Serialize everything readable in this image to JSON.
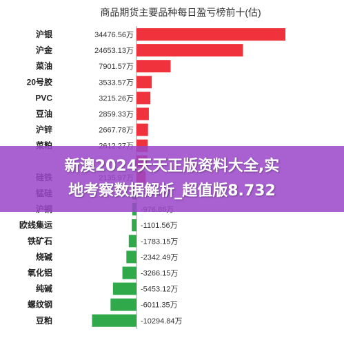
{
  "chart_data": {
    "type": "bar",
    "orientation": "horizontal",
    "title": "商品期货主要品种每日盈亏榜前十(估)",
    "unit": "万",
    "categories": [
      "沪银",
      "沪金",
      "菜油",
      "20号胶",
      "PVC",
      "豆油",
      "沪锌",
      "菜粕",
      "",
      "硅铁",
      "锰硅",
      "沪铜",
      "欧线集运",
      "铁矿石",
      "烧碱",
      "氧化铝",
      "纯碱",
      "螺纹钢",
      "豆粕"
    ],
    "values": [
      34476.56,
      24653.13,
      7901.57,
      3533.57,
      3215.26,
      2859.33,
      2667.78,
      2612.27,
      2500,
      2135.97,
      -974.77,
      -976.86,
      -1101.56,
      -1783.15,
      -2342.49,
      -3266.15,
      -5453.12,
      -6011.35,
      -10294.84
    ],
    "value_labels": [
      "34476.56万",
      "24653.13万",
      "7901.57万",
      "3533.57万",
      "3215.26万",
      "2859.33万",
      "2667.78万",
      "2612.27万",
      "",
      "2135.97万",
      "-974.77万",
      "-976.86万",
      "-1101.56万",
      "-1783.15万",
      "-2342.49万",
      "-3266.15万",
      "-5453.12万",
      "-6011.35万",
      "-10294.84万"
    ],
    "colors": {
      "positive": "#f0323c",
      "negative": "#2fa94a"
    },
    "grid": false,
    "legend": "none"
  },
  "overlay": {
    "line1": "新澳2024天天正版资料大全,实",
    "line2": "地考察数据解析_超值版8.732",
    "background": "#9b46c8"
  }
}
